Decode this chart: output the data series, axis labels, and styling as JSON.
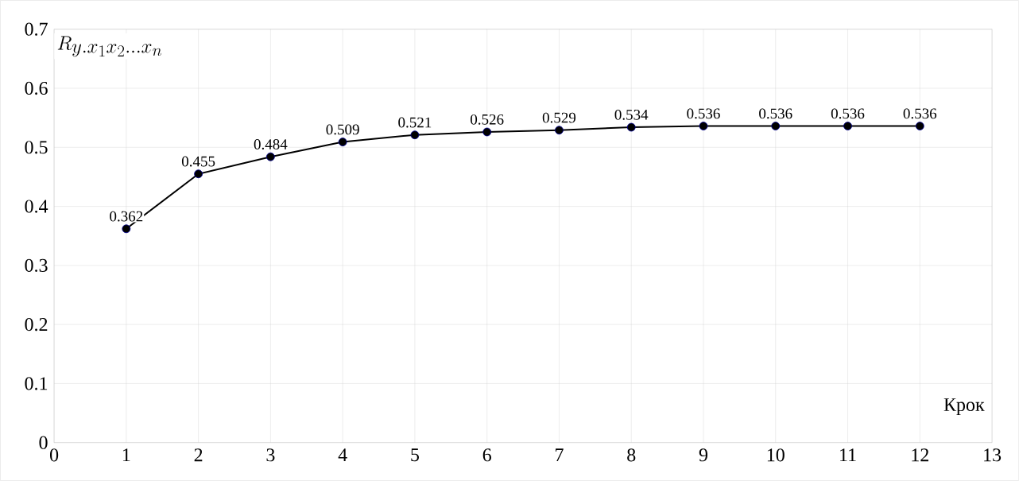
{
  "chart_data": {
    "type": "line",
    "ylabel": "R_{y.x_1x_2\\ldots x_n}",
    "xlabel": "Крок",
    "x": [
      1,
      2,
      3,
      4,
      5,
      6,
      7,
      8,
      9,
      10,
      11,
      12
    ],
    "values": [
      0.362,
      0.455,
      0.484,
      0.509,
      0.521,
      0.526,
      0.529,
      0.534,
      0.536,
      0.536,
      0.536,
      0.536
    ],
    "color": "#000000",
    "marker": "circle",
    "line_style": "solid",
    "data_labels": true,
    "grid": true,
    "xlim": [
      0,
      13
    ],
    "xticks": [
      0,
      1,
      2,
      3,
      4,
      5,
      6,
      7,
      8,
      9,
      10,
      11,
      12,
      13
    ],
    "ylim": [
      0,
      0.7
    ],
    "yticks": [
      0,
      0.1,
      0.2,
      0.3,
      0.4,
      0.5,
      0.6,
      0.7
    ]
  }
}
